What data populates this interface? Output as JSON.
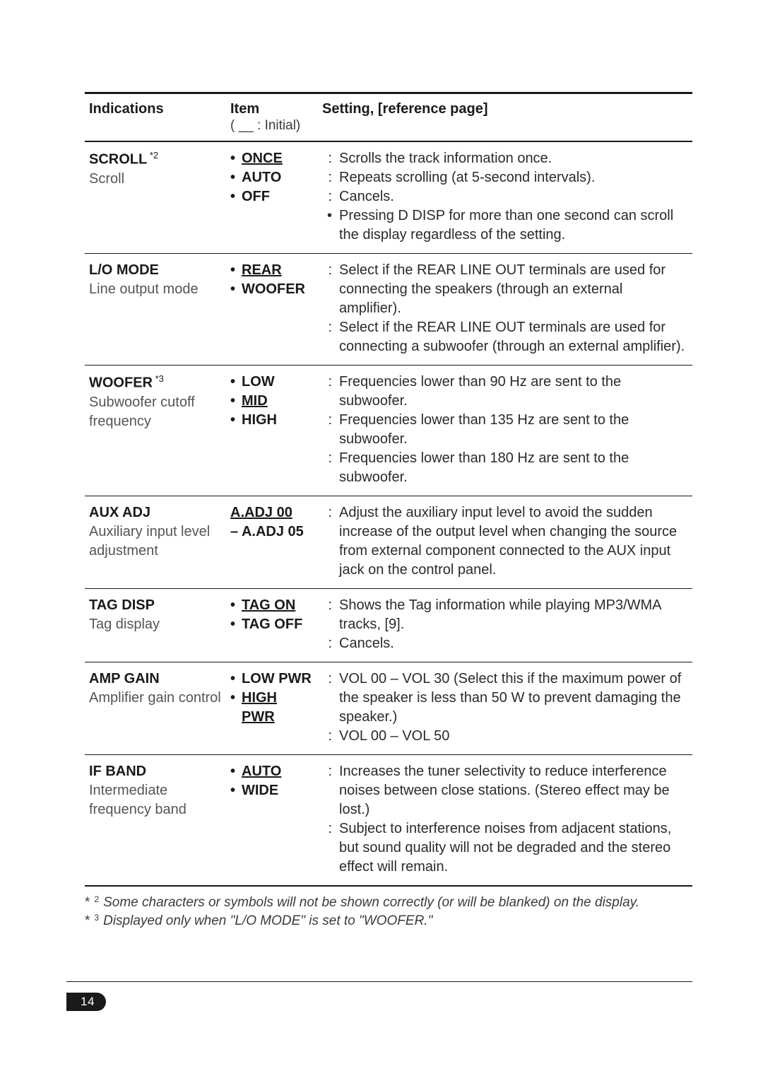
{
  "header": {
    "col1": "Indications",
    "col2": "Item",
    "col2_sub": "( __ : Initial)",
    "col3": "Setting, [reference page]"
  },
  "rows": [
    {
      "indicator": {
        "title": "SCROLL",
        "sup": "*2",
        "subtitle": "Scroll"
      },
      "items": [
        {
          "label": "ONCE",
          "underline": true
        },
        {
          "label": "AUTO",
          "underline": false
        },
        {
          "label": "OFF",
          "underline": false
        }
      ],
      "descs": [
        {
          "marker": ":",
          "text": "Scrolls the track information once."
        },
        {
          "marker": ":",
          "text": "Repeats scrolling (at 5-second intervals)."
        },
        {
          "marker": ":",
          "text": "Cancels."
        },
        {
          "marker": "•",
          "text": "Pressing D DISP for more than one second can scroll the display regardless of the setting."
        }
      ]
    },
    {
      "indicator": {
        "title": "L/O MODE",
        "sup": "",
        "subtitle": "Line output mode"
      },
      "items": [
        {
          "label": "REAR",
          "underline": true
        },
        {
          "label": "WOOFER",
          "underline": false
        }
      ],
      "descs": [
        {
          "marker": ":",
          "text": "Select if the REAR LINE OUT terminals are used for connecting the speakers (through an external amplifier)."
        },
        {
          "marker": ":",
          "text": "Select if the REAR LINE OUT terminals are used for connecting a subwoofer (through an external amplifier)."
        }
      ]
    },
    {
      "indicator": {
        "title": "WOOFER",
        "sup": "*3",
        "subtitle": "Subwoofer cutoff frequency"
      },
      "items": [
        {
          "label": "LOW",
          "underline": false
        },
        {
          "label": "MID",
          "underline": true
        },
        {
          "label": "HIGH",
          "underline": false
        }
      ],
      "descs": [
        {
          "marker": ":",
          "text": "Frequencies lower than 90 Hz are sent to the subwoofer."
        },
        {
          "marker": ":",
          "text": "Frequencies lower than 135 Hz are sent to the subwoofer."
        },
        {
          "marker": ":",
          "text": "Frequencies lower than 180 Hz are sent to the subwoofer."
        }
      ]
    },
    {
      "indicator": {
        "title": "AUX ADJ",
        "sup": "",
        "subtitle": "Auxiliary input level adjustment"
      },
      "range": {
        "line1": "A.ADJ 00",
        "line2": "– A.ADJ 05"
      },
      "descs": [
        {
          "marker": ":",
          "text": "Adjust the auxiliary input level to avoid the sudden increase of the output level when changing the source from external component connected to the AUX input jack on the control panel."
        }
      ]
    },
    {
      "indicator": {
        "title": "TAG DISP",
        "sup": "",
        "subtitle": "Tag display"
      },
      "items": [
        {
          "label": "TAG ON",
          "underline": true
        },
        {
          "label": "TAG OFF",
          "underline": false
        }
      ],
      "descs": [
        {
          "marker": ":",
          "text": "Shows the Tag information while playing MP3/WMA tracks, [9]."
        },
        {
          "marker": ":",
          "text": "Cancels."
        }
      ]
    },
    {
      "indicator": {
        "title": "AMP GAIN",
        "sup": "",
        "subtitle": "Amplifier gain control"
      },
      "items": [
        {
          "label": "LOW PWR",
          "underline": false
        },
        {
          "label": "HIGH PWR",
          "underline": true
        }
      ],
      "descs": [
        {
          "marker": ":",
          "text": "VOL 00 – VOL 30 (Select this if the maximum power of the speaker is less than 50 W to prevent damaging the speaker.)"
        },
        {
          "marker": ":",
          "text": "VOL 00 – VOL 50"
        }
      ]
    },
    {
      "indicator": {
        "title": "IF BAND",
        "sup": "",
        "subtitle": "Intermediate frequency band"
      },
      "items": [
        {
          "label": "AUTO",
          "underline": true
        },
        {
          "label": "WIDE",
          "underline": false
        }
      ],
      "descs": [
        {
          "marker": ":",
          "text": "Increases the tuner selectivity to reduce interference noises between close stations. (Stereo effect may be lost.)"
        },
        {
          "marker": ":",
          "text": "Subject to interference noises from adjacent stations, but sound quality will not be degraded and the stereo effect will remain."
        }
      ]
    }
  ],
  "footnotes": [
    {
      "mark": "*",
      "sup": "2",
      "text": "Some characters or symbols will not be shown correctly (or will be blanked) on the display."
    },
    {
      "mark": "*",
      "sup": "3",
      "text": "Displayed only when \"L/O MODE\" is set to \"WOOFER.\""
    }
  ],
  "page_number": "14"
}
